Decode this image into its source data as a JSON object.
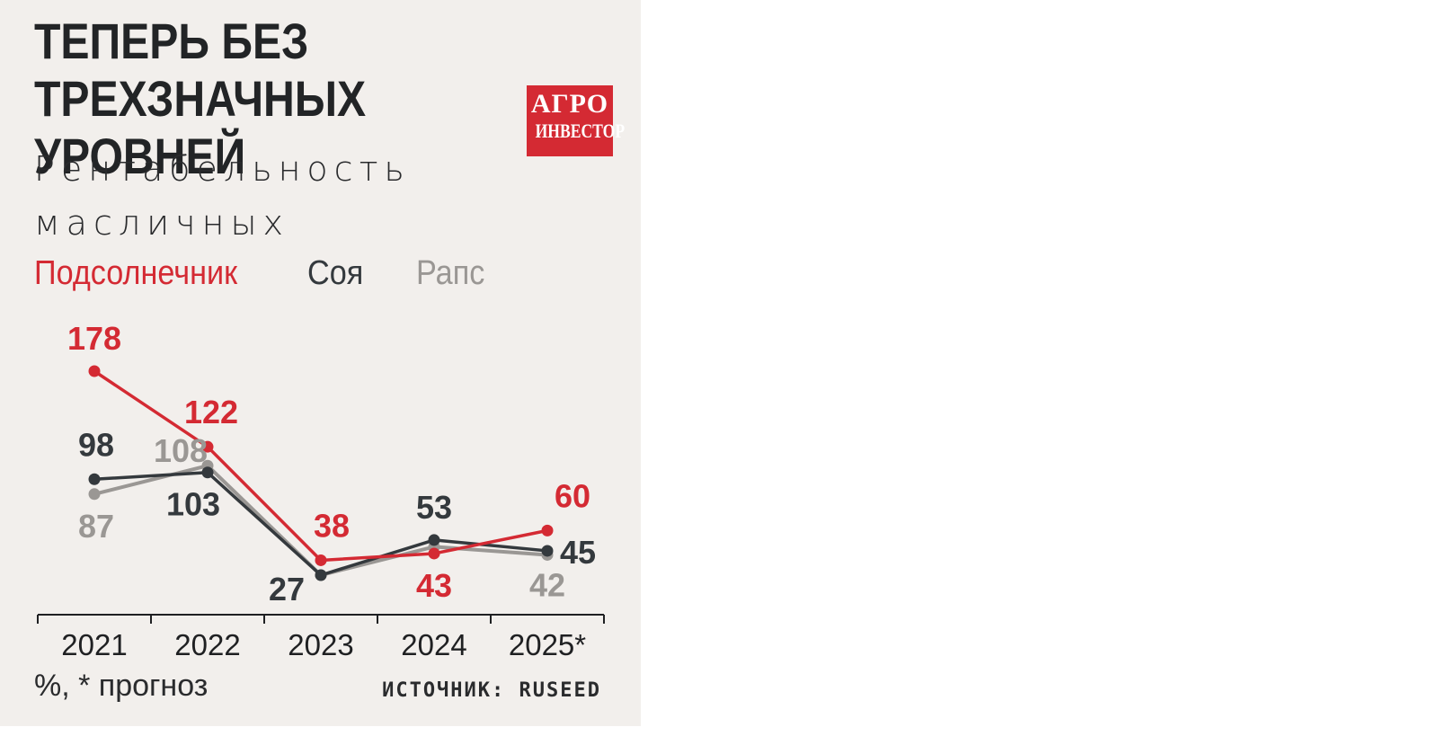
{
  "header": {
    "title": "ТЕПЕРЬ БЕЗ ТРЕХЗНАЧНЫХ УРОВНЕЙ",
    "subtitle": "Рентабельность масличных"
  },
  "logo": {
    "line1": "АГРО",
    "line2": "ИНВЕСТОР",
    "color": "#d42a33"
  },
  "footer": {
    "unit_note": "%, * прогноз",
    "source": "ИСТОЧНИК: RUSEED"
  },
  "chart_data": {
    "type": "line",
    "title": "ТЕПЕРЬ БЕЗ ТРЕХЗНАЧНЫХ УРОВНЕЙ",
    "subtitle": "Рентабельность масличных",
    "categories": [
      "2021",
      "2022",
      "2023",
      "2024",
      "2025*"
    ],
    "ylabel": "",
    "legend_position": "top",
    "grid": false,
    "series": [
      {
        "name": "Подсолнечник",
        "color": "#d42a33",
        "values": [
          178,
          122,
          38,
          43,
          60
        ]
      },
      {
        "name": "Соя",
        "color": "#34393d",
        "values": [
          98,
          103,
          27,
          53,
          45
        ]
      },
      {
        "name": "Рапс",
        "color": "#9a9794",
        "values": [
          87,
          108,
          27,
          48,
          42
        ]
      }
    ],
    "data_labels": [
      {
        "series": "Подсолнечник",
        "text": [
          "178",
          "122",
          "38",
          "43",
          "60"
        ]
      },
      {
        "series": "Соя",
        "text": [
          "98",
          "103",
          "27",
          "53",
          "45"
        ]
      },
      {
        "series": "Рапс",
        "text": [
          "87",
          "108",
          "",
          "",
          "42"
        ]
      }
    ],
    "ylim": [
      0,
      190
    ]
  }
}
